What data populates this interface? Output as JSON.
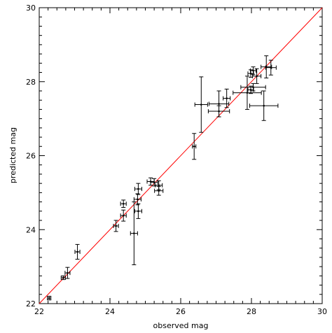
{
  "chart_data": {
    "type": "scatter",
    "title": "",
    "xlabel": "observed mag",
    "ylabel": "predicted mag",
    "xlim": [
      22,
      30
    ],
    "ylim": [
      22,
      30
    ],
    "grid": false,
    "x_ticks": [
      22,
      24,
      26,
      28,
      30
    ],
    "y_ticks": [
      22,
      24,
      26,
      28,
      30
    ],
    "x_tick_labels": [
      "22",
      "24",
      "26",
      "28",
      "30"
    ],
    "y_tick_labels": [
      "22",
      "24",
      "26",
      "28",
      "30"
    ],
    "x_minor_step": 0.25,
    "y_minor_step": 0.25,
    "reference_line": {
      "from": [
        22,
        22
      ],
      "to": [
        30,
        30
      ],
      "color": "#ff0000"
    },
    "point_color": "#000000",
    "series": [
      {
        "points": [
          {
            "x": 22.28,
            "y": 22.15,
            "xerr": 0.05,
            "yerr": 0.05
          },
          {
            "x": 22.68,
            "y": 22.7,
            "xerr": 0.06,
            "yerr": 0.05
          },
          {
            "x": 22.8,
            "y": 22.83,
            "xerr": 0.07,
            "yerr": 0.15
          },
          {
            "x": 23.08,
            "y": 23.4,
            "xerr": 0.07,
            "yerr": 0.2
          },
          {
            "x": 24.17,
            "y": 24.1,
            "xerr": 0.07,
            "yerr": 0.15
          },
          {
            "x": 24.38,
            "y": 24.38,
            "xerr": 0.08,
            "yerr": 0.15
          },
          {
            "x": 24.38,
            "y": 24.7,
            "xerr": 0.08,
            "yerr": 0.1
          },
          {
            "x": 24.68,
            "y": 23.9,
            "xerr": 0.1,
            "yerr": 0.85
          },
          {
            "x": 24.8,
            "y": 24.5,
            "xerr": 0.1,
            "yerr": 0.2
          },
          {
            "x": 24.78,
            "y": 24.82,
            "xerr": 0.1,
            "yerr": 0.15
          },
          {
            "x": 24.8,
            "y": 25.1,
            "xerr": 0.1,
            "yerr": 0.15
          },
          {
            "x": 25.15,
            "y": 25.3,
            "xerr": 0.1,
            "yerr": 0.1
          },
          {
            "x": 25.25,
            "y": 25.28,
            "xerr": 0.1,
            "yerr": 0.1
          },
          {
            "x": 25.38,
            "y": 25.2,
            "xerr": 0.1,
            "yerr": 0.12
          },
          {
            "x": 25.38,
            "y": 25.05,
            "xerr": 0.12,
            "yerr": 0.12
          },
          {
            "x": 26.38,
            "y": 26.25,
            "xerr": 0.05,
            "yerr": 0.35
          },
          {
            "x": 26.58,
            "y": 27.38,
            "xerr": 0.18,
            "yerr": 0.75
          },
          {
            "x": 27.08,
            "y": 27.4,
            "xerr": 0.28,
            "yerr": 0.35
          },
          {
            "x": 27.08,
            "y": 27.2,
            "xerr": 0.3,
            "yerr": 0.15
          },
          {
            "x": 27.3,
            "y": 27.55,
            "xerr": 0.1,
            "yerr": 0.25
          },
          {
            "x": 27.88,
            "y": 27.7,
            "xerr": 0.4,
            "yerr": 0.45
          },
          {
            "x": 27.98,
            "y": 27.78,
            "xerr": 0.08,
            "yerr": 0.1
          },
          {
            "x": 28.05,
            "y": 27.85,
            "xerr": 0.35,
            "yerr": 0.1
          },
          {
            "x": 27.98,
            "y": 28.22,
            "xerr": 0.08,
            "yerr": 0.1
          },
          {
            "x": 28.05,
            "y": 28.3,
            "xerr": 0.08,
            "yerr": 0.1
          },
          {
            "x": 28.15,
            "y": 28.15,
            "xerr": 0.12,
            "yerr": 0.2
          },
          {
            "x": 28.35,
            "y": 27.35,
            "xerr": 0.4,
            "yerr": 0.4
          },
          {
            "x": 28.42,
            "y": 28.4,
            "xerr": 0.15,
            "yerr": 0.3
          },
          {
            "x": 28.55,
            "y": 28.38,
            "xerr": 0.15,
            "yerr": 0.2
          }
        ]
      }
    ]
  }
}
